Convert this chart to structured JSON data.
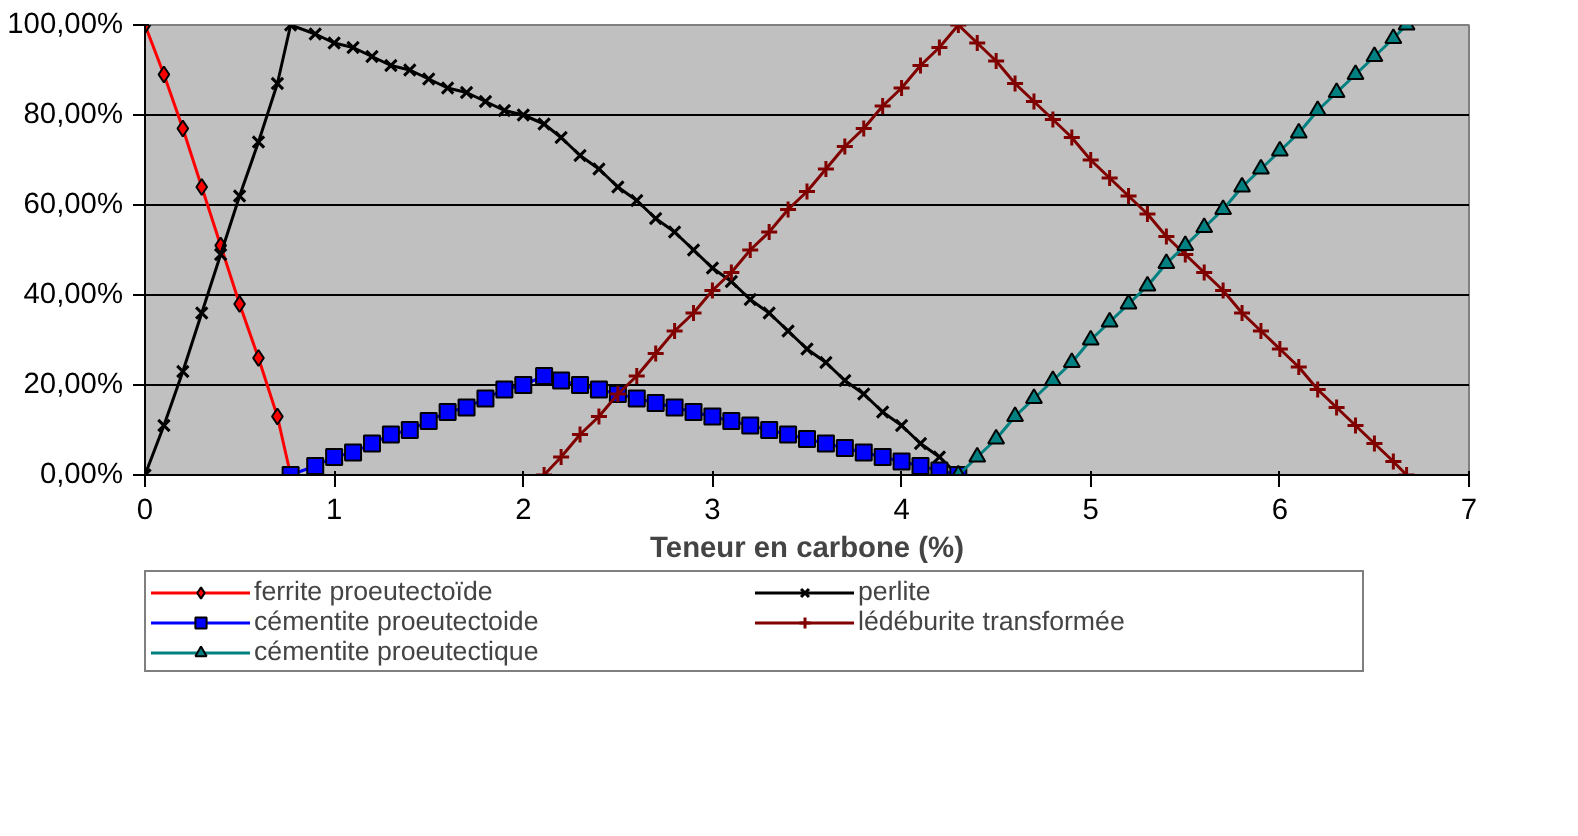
{
  "chart_data": {
    "type": "line",
    "xlabel": "Teneur en carbone (%)",
    "xlim": [
      0,
      7
    ],
    "xticks": [
      0,
      1,
      2,
      3,
      4,
      5,
      6,
      7
    ],
    "ylim": [
      0,
      100
    ],
    "yticks": [
      {
        "value": 0,
        "label": "0,00%"
      },
      {
        "value": 20,
        "label": "20,00%"
      },
      {
        "value": 40,
        "label": "40,00%"
      },
      {
        "value": 60,
        "label": "60,00%"
      },
      {
        "value": 80,
        "label": "80,00%"
      },
      {
        "value": 100,
        "label": "100,00%"
      }
    ],
    "grid": "y",
    "legend": "bottom",
    "line_style": "solid",
    "series": [
      {
        "name": "ferrite proeutectoïde",
        "color": "#ff0000",
        "marker": "diamond",
        "x": [
          0,
          0.1,
          0.2,
          0.3,
          0.4,
          0.5,
          0.6,
          0.7,
          0.77
        ],
        "values": [
          100,
          89,
          77,
          64,
          51,
          38,
          26,
          13,
          0
        ]
      },
      {
        "name": "perlite",
        "color": "#000000",
        "marker": "cross",
        "x": [
          0,
          0.1,
          0.2,
          0.3,
          0.4,
          0.5,
          0.6,
          0.7,
          0.77,
          0.9,
          1.0,
          1.1,
          1.2,
          1.3,
          1.4,
          1.5,
          1.6,
          1.7,
          1.8,
          1.9,
          2.0,
          2.11,
          2.2,
          2.3,
          2.4,
          2.5,
          2.6,
          2.7,
          2.8,
          2.9,
          3.0,
          3.1,
          3.2,
          3.3,
          3.4,
          3.5,
          3.6,
          3.7,
          3.8,
          3.9,
          4.0,
          4.1,
          4.2,
          4.3
        ],
        "values": [
          0,
          11,
          23,
          36,
          49,
          62,
          74,
          87,
          100,
          98,
          96,
          95,
          93,
          91,
          90,
          88,
          86,
          85,
          83,
          81,
          80,
          78,
          75,
          71,
          68,
          64,
          61,
          57,
          54,
          50,
          46,
          43,
          39,
          36,
          32,
          28,
          25,
          21,
          18,
          14,
          11,
          7,
          4,
          0
        ]
      },
      {
        "name": "cémentite proeutectoide",
        "color": "#0000ff",
        "marker": "square",
        "x": [
          0.77,
          0.9,
          1.0,
          1.1,
          1.2,
          1.3,
          1.4,
          1.5,
          1.6,
          1.7,
          1.8,
          1.9,
          2.0,
          2.11,
          2.2,
          2.3,
          2.4,
          2.5,
          2.6,
          2.7,
          2.8,
          2.9,
          3.0,
          3.1,
          3.2,
          3.3,
          3.4,
          3.5,
          3.6,
          3.7,
          3.8,
          3.9,
          4.0,
          4.1,
          4.2,
          4.3
        ],
        "values": [
          0,
          2,
          4,
          5,
          7,
          9,
          10,
          12,
          14,
          15,
          17,
          19,
          20,
          22,
          21,
          20,
          19,
          18,
          17,
          16,
          15,
          14,
          13,
          12,
          11,
          10,
          9,
          8,
          7,
          6,
          5,
          4,
          3,
          2,
          1,
          0
        ]
      },
      {
        "name": "lédéburite transformée",
        "color": "#800000",
        "marker": "plus",
        "x": [
          2.11,
          2.2,
          2.3,
          2.4,
          2.5,
          2.6,
          2.7,
          2.8,
          2.9,
          3.0,
          3.1,
          3.2,
          3.3,
          3.4,
          3.5,
          3.6,
          3.7,
          3.8,
          3.9,
          4.0,
          4.1,
          4.2,
          4.3,
          4.4,
          4.5,
          4.6,
          4.7,
          4.8,
          4.9,
          5.0,
          5.1,
          5.2,
          5.3,
          5.4,
          5.5,
          5.6,
          5.7,
          5.8,
          5.9,
          6.0,
          6.1,
          6.2,
          6.3,
          6.4,
          6.5,
          6.6,
          6.67
        ],
        "values": [
          0,
          4,
          9,
          13,
          18,
          22,
          27,
          32,
          36,
          41,
          45,
          50,
          54,
          59,
          63,
          68,
          73,
          77,
          82,
          86,
          91,
          95,
          100,
          96,
          92,
          87,
          83,
          79,
          75,
          70,
          66,
          62,
          58,
          53,
          49,
          45,
          41,
          36,
          32,
          28,
          24,
          19,
          15,
          11,
          7,
          3,
          0
        ]
      },
      {
        "name": "cémentite proeutectique",
        "color": "#008080",
        "marker": "triangle",
        "x": [
          4.3,
          4.4,
          4.5,
          4.6,
          4.7,
          4.8,
          4.9,
          5.0,
          5.1,
          5.2,
          5.3,
          5.4,
          5.5,
          5.6,
          5.7,
          5.8,
          5.9,
          6.0,
          6.1,
          6.2,
          6.3,
          6.4,
          6.5,
          6.6,
          6.67
        ],
        "values": [
          0,
          4,
          8,
          13,
          17,
          21,
          25,
          30,
          34,
          38,
          42,
          47,
          51,
          55,
          59,
          64,
          68,
          72,
          76,
          81,
          85,
          89,
          93,
          97,
          100
        ]
      }
    ]
  }
}
